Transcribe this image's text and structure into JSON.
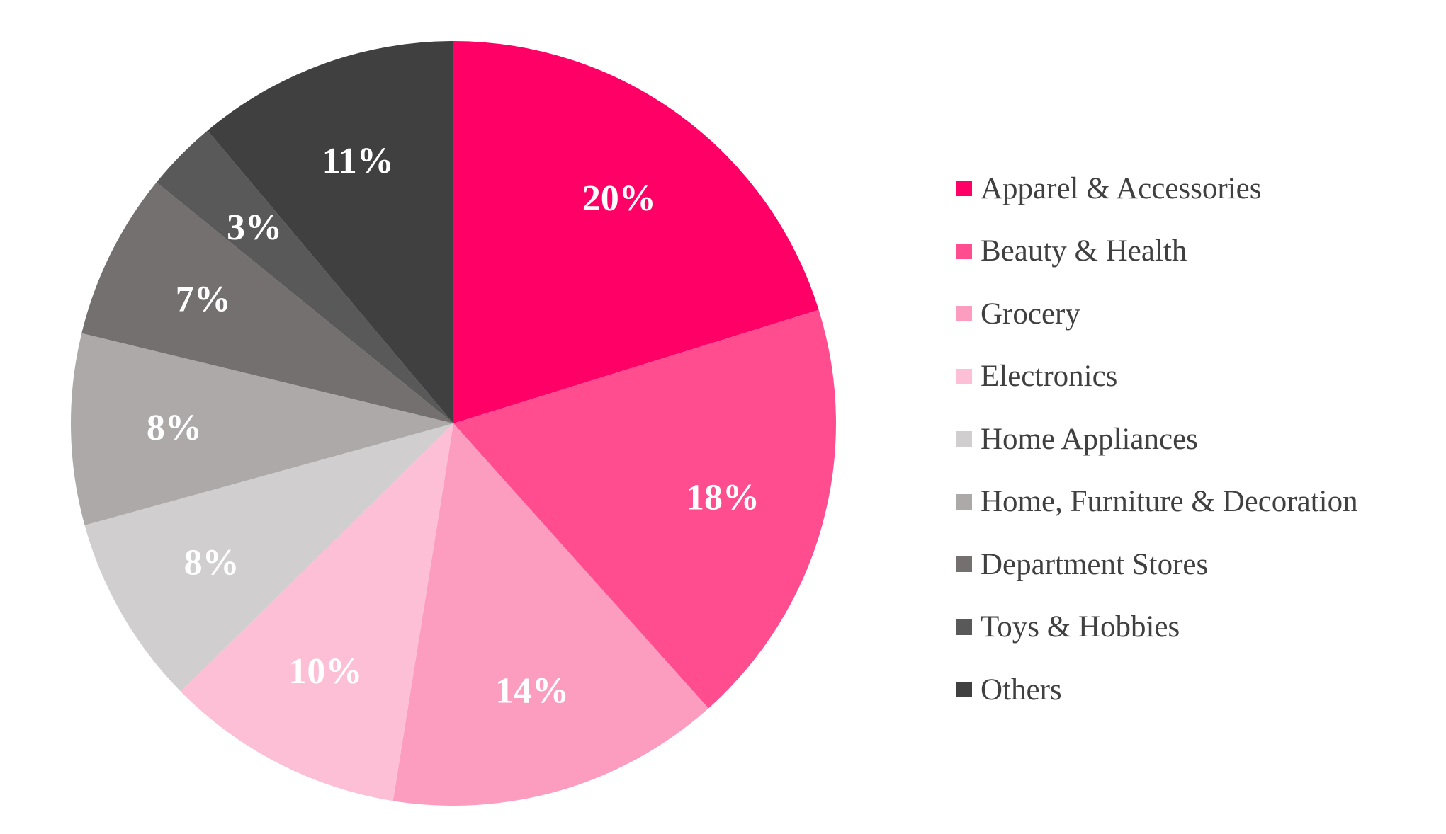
{
  "chart_data": {
    "type": "pie",
    "categories": [
      "Apparel & Accessories",
      "Beauty & Health",
      "Grocery",
      "Electronics",
      "Home Appliances",
      "Home, Furniture & Decoration",
      "Department Stores",
      "Toys & Hobbies",
      "Others"
    ],
    "values": [
      20,
      18,
      14,
      10,
      8,
      8,
      7,
      3,
      11
    ],
    "data_labels": [
      "20%",
      "18%",
      "14%",
      "10%",
      "8%",
      "8%",
      "7%",
      "3%",
      "11%"
    ],
    "colors": [
      "#FF0066",
      "#FF4D8F",
      "#FC9CBF",
      "#FDBFD5",
      "#D0CECF",
      "#ADA9A9",
      "#747070",
      "#595959",
      "#404040"
    ],
    "legend_position": "right",
    "start_angle_deg": 0,
    "direction": "clockwise"
  }
}
